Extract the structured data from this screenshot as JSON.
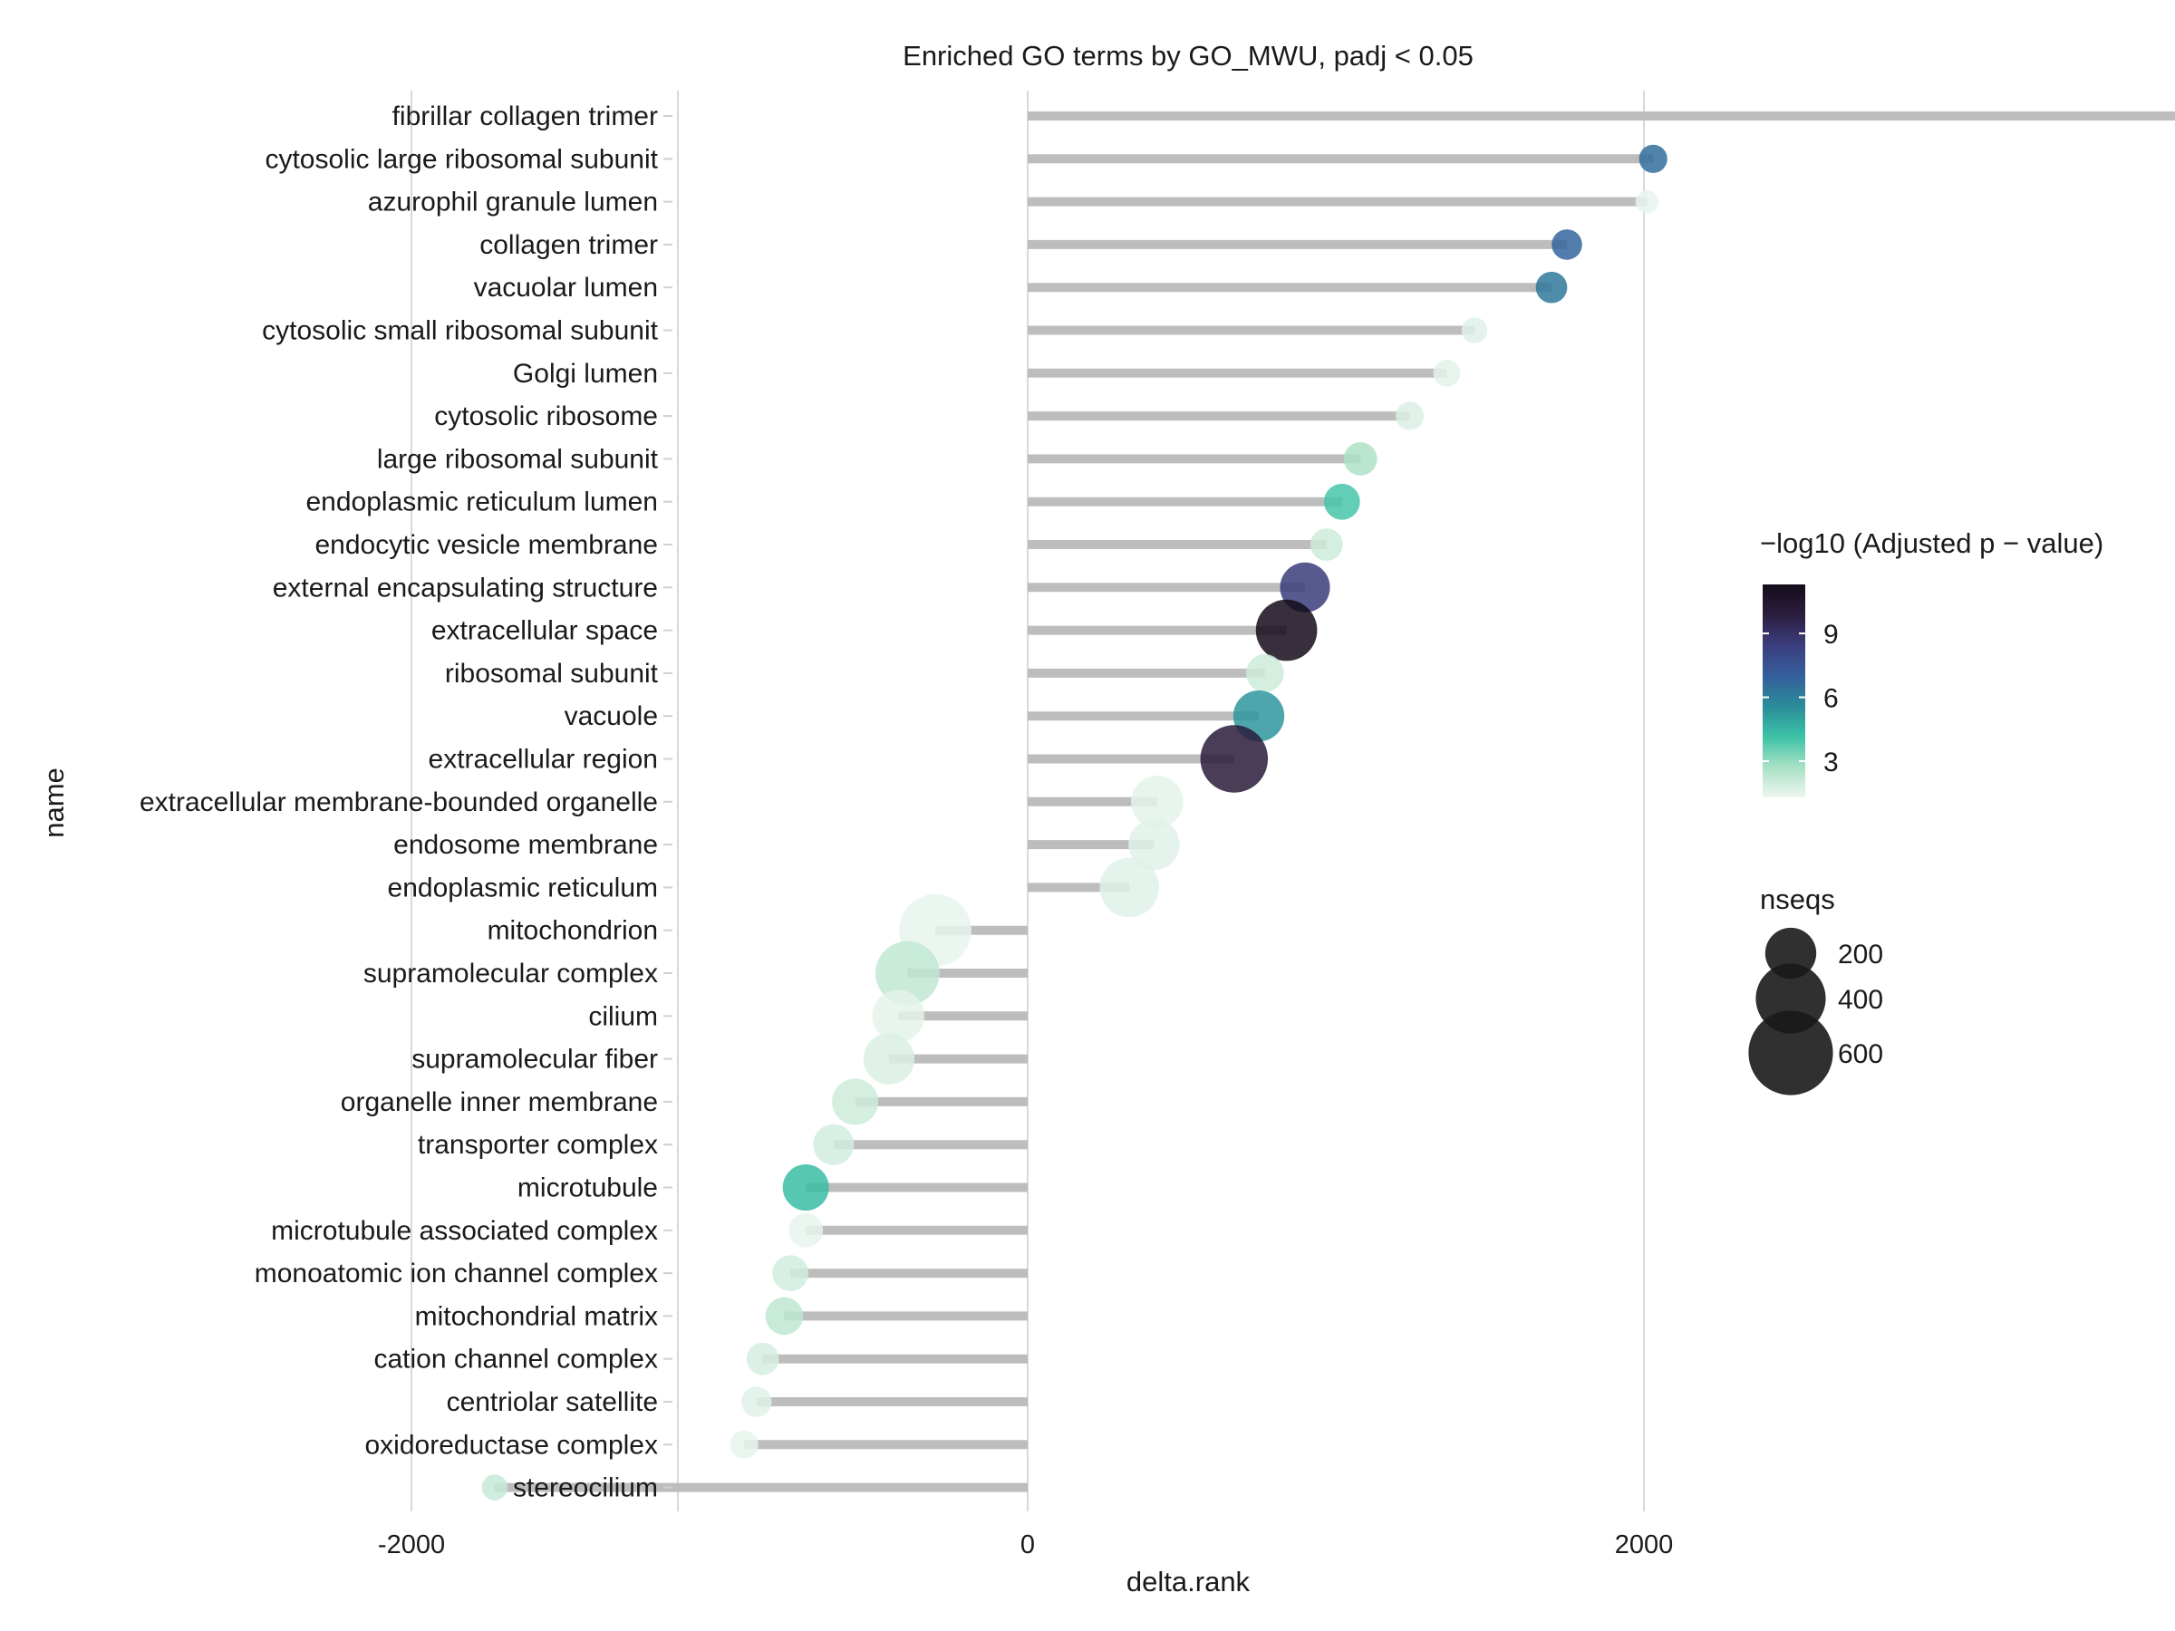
{
  "chart_data": {
    "type": "lollipop",
    "title": "Enriched GO terms by GO_MWU, padj < 0.05",
    "xlabel": "delta.rank",
    "ylabel": "name",
    "xlim": [
      -2270,
      4000
    ],
    "xticks": [
      -2000,
      0,
      2000,
      4000
    ],
    "grid": "vertical major gridlines",
    "legend_position": "right",
    "color_legend": {
      "title": "−log10 (Adjusted p − value)",
      "ticks": [
        3,
        6,
        9
      ],
      "range": [
        1.3,
        11.3
      ],
      "colors": [
        "#eef6f0",
        "#a8e0c4",
        "#3cc2a6",
        "#2a8c9a",
        "#355e9c",
        "#3b3e7d",
        "#2b1d3e",
        "#140c1a"
      ]
    },
    "size_legend": {
      "title": "nseqs",
      "values": [
        200,
        400,
        600
      ]
    },
    "stem_color": "#bdbdbd",
    "terms": [
      {
        "name": "fibrillar collagen trimer",
        "delta_rank": 3820,
        "neglog10_padj": 1.8,
        "nseqs": 12
      },
      {
        "name": "cytosolic large ribosomal subunit",
        "delta_rank": 2030,
        "neglog10_padj": 6.5,
        "nseqs": 50
      },
      {
        "name": "azurophil granule lumen",
        "delta_rank": 2010,
        "neglog10_padj": 1.4,
        "nseqs": 30
      },
      {
        "name": "collagen trimer",
        "delta_rank": 1750,
        "neglog10_padj": 6.8,
        "nseqs": 60
      },
      {
        "name": "vacuolar lumen",
        "delta_rank": 1700,
        "neglog10_padj": 6.2,
        "nseqs": 65
      },
      {
        "name": "cytosolic small ribosomal subunit",
        "delta_rank": 1450,
        "neglog10_padj": 1.6,
        "nseqs": 40
      },
      {
        "name": "Golgi lumen",
        "delta_rank": 1360,
        "neglog10_padj": 1.5,
        "nseqs": 45
      },
      {
        "name": "cytosolic ribosome",
        "delta_rank": 1240,
        "neglog10_padj": 1.7,
        "nseqs": 50
      },
      {
        "name": "large ribosomal subunit",
        "delta_rank": 1080,
        "neglog10_padj": 2.6,
        "nseqs": 75
      },
      {
        "name": "endoplasmic reticulum lumen",
        "delta_rank": 1020,
        "neglog10_padj": 4.0,
        "nseqs": 90
      },
      {
        "name": "endocytic vesicle membrane",
        "delta_rank": 970,
        "neglog10_padj": 2.0,
        "nseqs": 70
      },
      {
        "name": "external encapsulating structure",
        "delta_rank": 900,
        "neglog10_padj": 8.5,
        "nseqs": 190
      },
      {
        "name": "extracellular space",
        "delta_rank": 840,
        "neglog10_padj": 11.3,
        "nseqs": 300
      },
      {
        "name": "ribosomal subunit",
        "delta_rank": 770,
        "neglog10_padj": 2.0,
        "nseqs": 100
      },
      {
        "name": "vacuole",
        "delta_rank": 750,
        "neglog10_padj": 5.3,
        "nseqs": 200
      },
      {
        "name": "extracellular region",
        "delta_rank": 670,
        "neglog10_padj": 10.0,
        "nseqs": 370
      },
      {
        "name": "extracellular membrane-bounded organelle",
        "delta_rank": 420,
        "neglog10_padj": 1.5,
        "nseqs": 210
      },
      {
        "name": "endosome membrane",
        "delta_rank": 410,
        "neglog10_padj": 1.6,
        "nseqs": 200
      },
      {
        "name": "endoplasmic reticulum",
        "delta_rank": 330,
        "neglog10_padj": 1.6,
        "nseqs": 280
      },
      {
        "name": "mitochondrion",
        "delta_rank": -300,
        "neglog10_padj": 1.4,
        "nseqs": 430
      },
      {
        "name": "supramolecular complex",
        "delta_rank": -390,
        "neglog10_padj": 2.2,
        "nseqs": 330
      },
      {
        "name": "cilium",
        "delta_rank": -420,
        "neglog10_padj": 1.5,
        "nseqs": 210
      },
      {
        "name": "supramolecular fiber",
        "delta_rank": -450,
        "neglog10_padj": 1.7,
        "nseqs": 200
      },
      {
        "name": "organelle inner membrane",
        "delta_rank": -560,
        "neglog10_padj": 2.0,
        "nseqs": 160
      },
      {
        "name": "transporter complex",
        "delta_rank": -630,
        "neglog10_padj": 1.9,
        "nseqs": 120
      },
      {
        "name": "microtubule",
        "delta_rank": -720,
        "neglog10_padj": 4.3,
        "nseqs": 160
      },
      {
        "name": "microtubule associated complex",
        "delta_rank": -720,
        "neglog10_padj": 1.4,
        "nseqs": 80
      },
      {
        "name": "monoatomic ion channel complex",
        "delta_rank": -770,
        "neglog10_padj": 1.9,
        "nseqs": 90
      },
      {
        "name": "mitochondrial matrix",
        "delta_rank": -790,
        "neglog10_padj": 2.3,
        "nseqs": 100
      },
      {
        "name": "cation channel complex",
        "delta_rank": -860,
        "neglog10_padj": 1.8,
        "nseqs": 70
      },
      {
        "name": "centriolar satellite",
        "delta_rank": -880,
        "neglog10_padj": 1.6,
        "nseqs": 60
      },
      {
        "name": "oxidoreductase complex",
        "delta_rank": -920,
        "neglog10_padj": 1.4,
        "nseqs": 50
      },
      {
        "name": "stereocilium",
        "delta_rank": -1730,
        "neglog10_padj": 2.1,
        "nseqs": 40
      }
    ]
  }
}
